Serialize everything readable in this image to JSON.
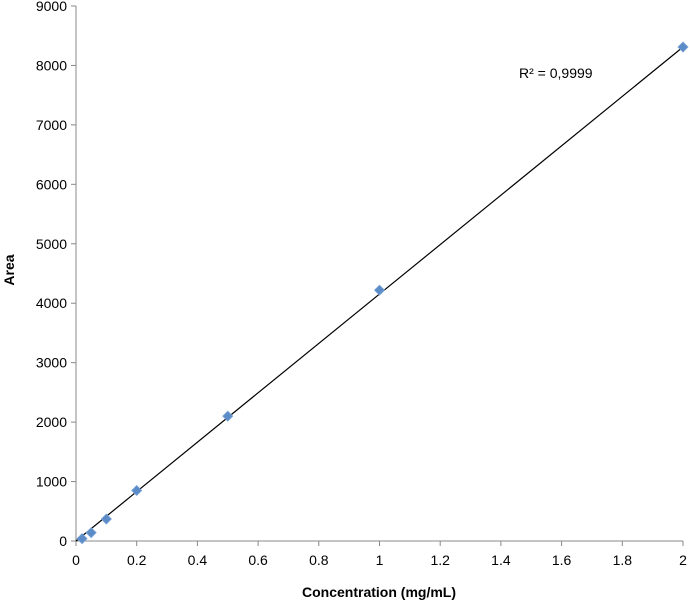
{
  "chart_data": {
    "type": "scatter",
    "title": "",
    "xlabel": "Concentration (mg/mL)",
    "ylabel": "Area",
    "xlim": [
      0,
      2
    ],
    "ylim": [
      0,
      9000
    ],
    "x_ticks": [
      0,
      0.2,
      0.4,
      0.6,
      0.8,
      1,
      1.2,
      1.4,
      1.6,
      1.8,
      2
    ],
    "x_tick_labels": [
      "0",
      "0.2",
      "0.4",
      "0.6",
      "0.8",
      "1",
      "1.2",
      "1.4",
      "1.6",
      "1.8",
      "2"
    ],
    "y_ticks": [
      0,
      1000,
      2000,
      3000,
      4000,
      5000,
      6000,
      7000,
      8000,
      9000
    ],
    "y_tick_labels": [
      "0",
      "1000",
      "2000",
      "3000",
      "4000",
      "5000",
      "6000",
      "7000",
      "8000",
      "9000"
    ],
    "grid": false,
    "legend": "none",
    "marker": "diamond",
    "marker_color": "#5b8cc8",
    "trendline_color": "#000000",
    "series": [
      {
        "x": [
          0.02,
          0.05,
          0.1,
          0.2,
          0.5,
          1,
          2
        ],
        "y": [
          40,
          140,
          370,
          850,
          2100,
          4220,
          8310
        ]
      }
    ],
    "trendline": {
      "type": "linear",
      "x_range": [
        0,
        2
      ],
      "y_at_start": 0,
      "y_at_end": 8310
    },
    "annotation": "R² = 0,9999"
  }
}
